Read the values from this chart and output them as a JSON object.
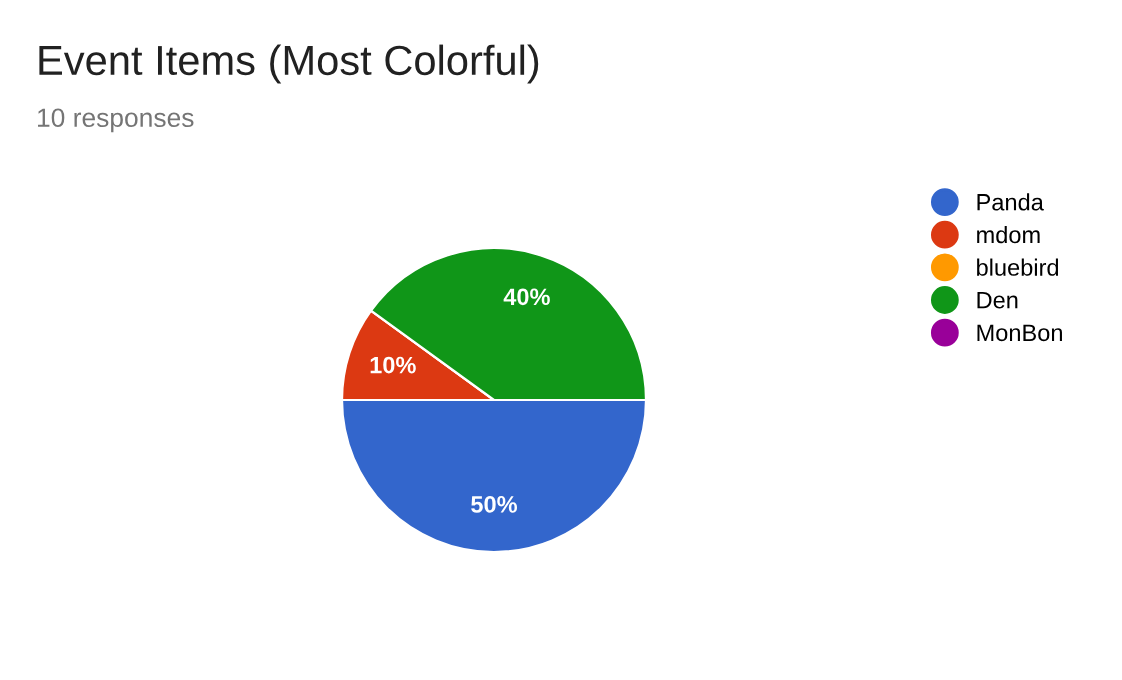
{
  "chart_data": {
    "type": "pie",
    "title": "Event Items (Most Colorful)",
    "subtitle": "10 responses",
    "categories": [
      "Panda",
      "mdom",
      "bluebird",
      "Den",
      "MonBon"
    ],
    "values": [
      50,
      10,
      0,
      40,
      0
    ],
    "colors": [
      "#3366cc",
      "#dc3912",
      "#ff9900",
      "#109618",
      "#990099"
    ],
    "value_labels": [
      "50%",
      "10%",
      null,
      "40%",
      null
    ],
    "legend": "right"
  }
}
